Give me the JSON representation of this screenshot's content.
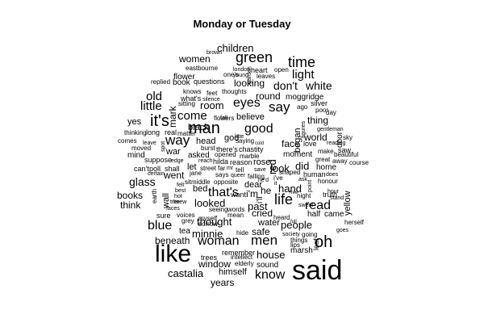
{
  "title": "Monday or Tuesday",
  "words": [
    "said",
    "like",
    "it's",
    "man",
    "oh",
    "time",
    "green",
    "life",
    "that's",
    "eyes",
    "say",
    "blue",
    "woman",
    "men",
    "know",
    "good",
    "way",
    "read",
    "children",
    "don't",
    "little",
    "old",
    "come",
    "house",
    "people",
    "glass",
    "light",
    "white",
    "looked",
    "thought",
    "room",
    "hand",
    "look",
    "did",
    "women",
    "red",
    "castalia",
    "minnie",
    "beneath",
    "years",
    "window",
    "trees",
    "safe",
    "round",
    "thing",
    "looking",
    "world",
    "past",
    "cried",
    "face",
    "went",
    "books",
    "think",
    "himself",
    "yellow",
    "questions",
    "flower",
    "mark",
    "believe",
    "bed",
    "black",
    "god",
    "began",
    "came",
    "moggridge",
    "water",
    "sound",
    "yes",
    "war",
    "let",
    "dear",
    "half",
    "home",
    "marsh",
    "book",
    "silver",
    "flowers",
    "truth",
    "moment",
    "great",
    "beautiful",
    "chastity",
    "wall",
    "night",
    "tea",
    "remember",
    "intellect",
    "elderly",
    "hide",
    "lips",
    "going",
    "things",
    "society",
    "herself",
    "heard",
    "grey",
    "sorrow",
    "voices",
    "myself",
    "seeing",
    "words",
    "mean",
    "mind",
    "suppose",
    "can't",
    "poll",
    "shall",
    "moved",
    "comes",
    "thinking",
    "long",
    "real",
    "matter",
    "leave",
    "spot",
    "edge",
    "certain",
    "jane",
    "says",
    "middle",
    "sit",
    "opposite",
    "want",
    "hot",
    "tree",
    "faces",
    "best",
    "knew",
    "earth",
    "sure",
    "felt",
    "asked",
    "burst",
    "opened",
    "reach",
    "hilda",
    "street",
    "far",
    "head",
    "there's",
    "marble",
    "saying",
    "cold",
    "late",
    "reason",
    "rose",
    "tell",
    "save",
    "queer",
    "falling",
    "i've",
    "shaped",
    "human",
    "ask",
    "point",
    "honour",
    "does",
    "make",
    "away",
    "course",
    "reading",
    "door",
    "sky",
    "poor",
    "day",
    "ago",
    "gentleman",
    "love",
    "sitting",
    "silence",
    "what's",
    "knows",
    "feet",
    "thoughts",
    "replied",
    "eastbourne",
    "brown",
    "one's",
    "london",
    "heart",
    "open",
    "young",
    "leaves",
    "garden",
    "i'm",
    "he",
    "i'll",
    "mr",
    "goes",
    "figures",
    "hour",
    "stand",
    "full",
    "he'd",
    "it",
    "saw",
    "leaf",
    "free",
    "sweet",
    "fall"
  ]
}
